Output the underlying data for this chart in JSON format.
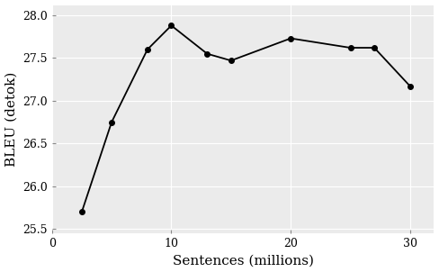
{
  "x": [
    2.5,
    5,
    8,
    10,
    13,
    15,
    20,
    25,
    27,
    30
  ],
  "y": [
    25.7,
    26.75,
    27.6,
    27.88,
    27.55,
    27.47,
    27.73,
    27.62,
    27.62,
    27.17
  ],
  "xlabel": "Sentences (millions)",
  "ylabel": "BLEU (detok)",
  "xlim": [
    0,
    32
  ],
  "ylim": [
    25.45,
    28.12
  ],
  "xticks": [
    0,
    10,
    20,
    30
  ],
  "yticks": [
    25.5,
    26.0,
    26.5,
    27.0,
    27.5,
    28.0
  ],
  "ytick_labels": [
    "25.5",
    "26.0",
    "26.5",
    "27.0",
    "27.5",
    "28.0"
  ],
  "line_color": "#000000",
  "marker": "o",
  "marker_size": 4,
  "marker_facecolor": "#000000",
  "plot_bg_color": "#EBEBEB",
  "outer_bg_color": "#FFFFFF",
  "grid_color": "#FFFFFF",
  "font_family": "serif",
  "font_size_axis_label": 11,
  "font_size_ticks": 9
}
